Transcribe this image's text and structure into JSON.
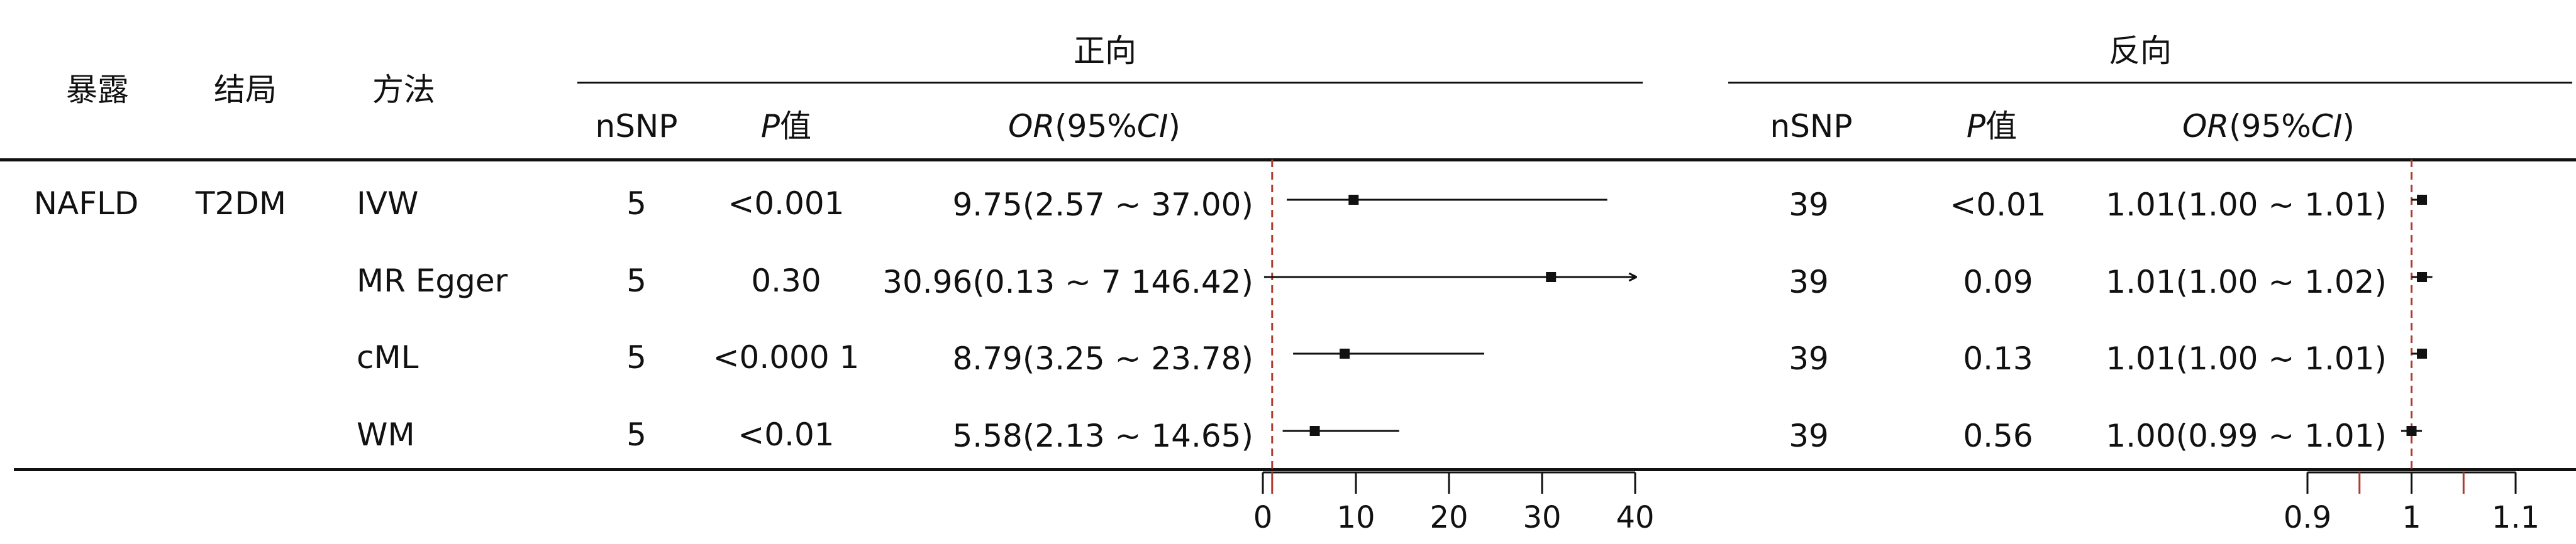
{
  "chart_data": {
    "type": "table",
    "headers": {
      "exposure": "暴露",
      "outcome": "结局",
      "method": "方法",
      "forward": "正向",
      "reverse": "反向",
      "nsnp": "nSNP",
      "p_italic": "P",
      "p_suffix": "值",
      "or_italic": "OR",
      "or_mid": "(95%",
      "ci_italic": "CI",
      "or_close": ")"
    },
    "exposure": "NAFLD",
    "outcome": "T2DM",
    "rows": [
      {
        "method": "IVW",
        "fwd_nsnp": "5",
        "fwd_p": "<0.001",
        "fwd_or_text": "9.75(2.57 ~ 37.00)",
        "fwd_or": 9.75,
        "fwd_lo": 2.57,
        "fwd_hi": 37.0,
        "rev_nsnp": "39",
        "rev_p": "<0.01",
        "rev_or_text": "1.01(1.00 ~ 1.01)",
        "rev_or": 1.01,
        "rev_lo": 1.0,
        "rev_hi": 1.01
      },
      {
        "method": "MR Egger",
        "fwd_nsnp": "5",
        "fwd_p": "0.30",
        "fwd_or_text": "30.96(0.13 ~ 7 146.42)",
        "fwd_or": 30.96,
        "fwd_lo": 0.13,
        "fwd_hi": 7146.42,
        "rev_nsnp": "39",
        "rev_p": "0.09",
        "rev_or_text": "1.01(1.00 ~ 1.02)",
        "rev_or": 1.01,
        "rev_lo": 1.0,
        "rev_hi": 1.02
      },
      {
        "method": "cML",
        "fwd_nsnp": "5",
        "fwd_p": "<0.000 1",
        "fwd_or_text": "8.79(3.25 ~ 23.78)",
        "fwd_or": 8.79,
        "fwd_lo": 3.25,
        "fwd_hi": 23.78,
        "rev_nsnp": "39",
        "rev_p": "0.13",
        "rev_or_text": "1.01(1.00 ~ 1.01)",
        "rev_or": 1.01,
        "rev_lo": 1.0,
        "rev_hi": 1.01
      },
      {
        "method": "WM",
        "fwd_nsnp": "5",
        "fwd_p": "<0.01",
        "fwd_or_text": "5.58(2.13 ~ 14.65)",
        "fwd_or": 5.58,
        "fwd_lo": 2.13,
        "fwd_hi": 14.65,
        "rev_nsnp": "39",
        "rev_p": "0.56",
        "rev_or_text": "1.00(0.99 ~ 1.01)",
        "rev_or": 1.0,
        "rev_lo": 0.99,
        "rev_hi": 1.01
      }
    ],
    "forward_axis": {
      "ticks": [
        0,
        10,
        20,
        30,
        40
      ],
      "tick_labels": [
        "0",
        "10",
        "20",
        "30",
        "40"
      ],
      "range": [
        0,
        40
      ],
      "reference": 1
    },
    "reverse_axis": {
      "ticks": [
        0.9,
        0.95,
        1,
        1.05,
        1.1
      ],
      "tick_labels": [
        "0.9",
        "",
        "1",
        "",
        "1.1"
      ],
      "range": [
        0.9,
        1.1
      ],
      "reference": 1
    },
    "colors": {
      "reference_line": "#b03a2e",
      "marker": "#111111",
      "rule": "#111111"
    }
  }
}
